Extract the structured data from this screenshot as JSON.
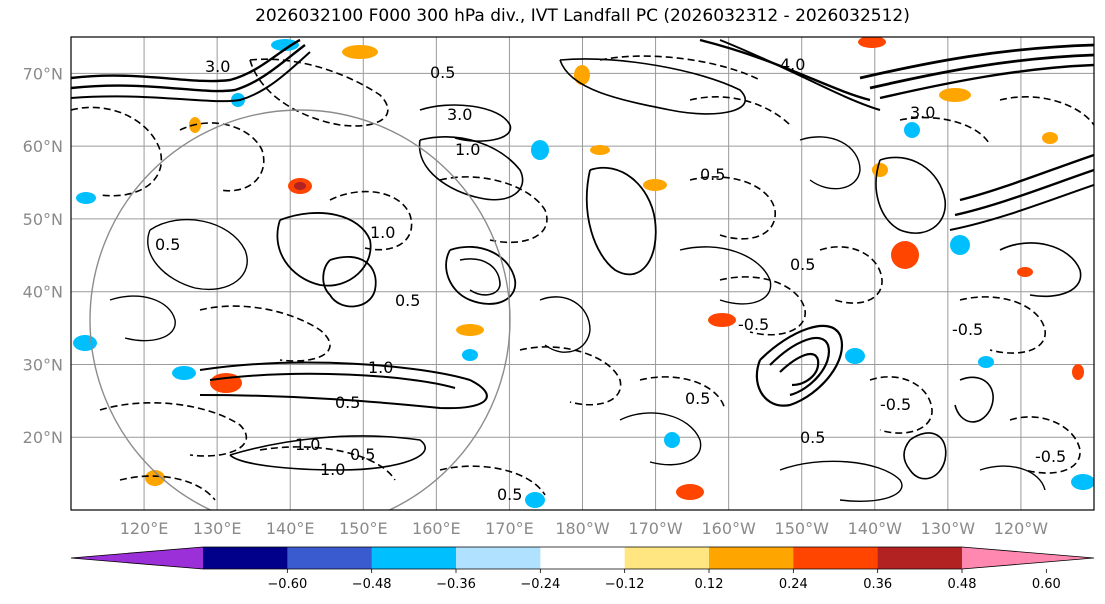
{
  "title": "2026032100 F000 300 hPa div., IVT Landfall PC (2026032312 - 2026032512)",
  "map": {
    "lat_labels": [
      "70°N",
      "60°N",
      "50°N",
      "40°N",
      "30°N",
      "20°N"
    ],
    "lon_labels": [
      "120°E",
      "130°E",
      "140°E",
      "150°E",
      "160°E",
      "170°E",
      "180°W",
      "170°W",
      "160°W",
      "150°W",
      "140°W",
      "130°W",
      "120°W"
    ],
    "lat_range": [
      10,
      75
    ],
    "lon_range": [
      110,
      250
    ],
    "contour_labels": [
      "3.0",
      "0.5",
      "3.0",
      "1.0",
      "0.5",
      "3.0",
      "0.5",
      "1.0",
      "4.0",
      "0.5",
      "0.5",
      "0.5",
      "-0.5",
      "0.5",
      "-0.5",
      "0.5",
      "1.0",
      "1.0",
      "0.5",
      "0.5",
      "-0.5",
      "-0.5",
      "1.0"
    ]
  },
  "colorbar": {
    "ticks": [
      "−0.60",
      "−0.48",
      "−0.36",
      "−0.24",
      "−0.12",
      "0.12",
      "0.24",
      "0.36",
      "0.48",
      "0.60"
    ],
    "colors": [
      "#9b30d9",
      "#00008b",
      "#3a5bd0",
      "#00bfff",
      "#b0e2ff",
      "#ffffff",
      "#ffe680",
      "#ffa500",
      "#ff4500",
      "#b22222",
      "#ff88b0"
    ],
    "extend": "both"
  },
  "legend_colors": {
    "grid": "#999999",
    "contour": "#000000"
  }
}
